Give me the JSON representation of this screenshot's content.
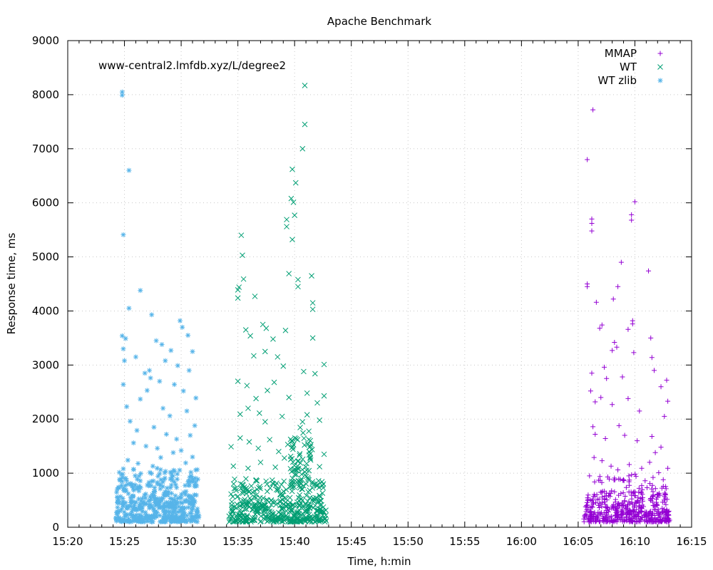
{
  "chart_data": {
    "type": "scatter",
    "title": "Apache Benchmark",
    "annotation": "www-central2.lmfdb.xyz/L/degree2",
    "xlabel": "Time, h:min",
    "ylabel": "Response time, ms",
    "xlim_minutes": [
      920,
      975
    ],
    "ylim": [
      0,
      9000
    ],
    "x_ticks": [
      {
        "v": 920,
        "label": "15:20"
      },
      {
        "v": 925,
        "label": "15:25"
      },
      {
        "v": 930,
        "label": "15:30"
      },
      {
        "v": 935,
        "label": "15:35"
      },
      {
        "v": 940,
        "label": "15:40"
      },
      {
        "v": 945,
        "label": "15:45"
      },
      {
        "v": 950,
        "label": "15:50"
      },
      {
        "v": 955,
        "label": "15:55"
      },
      {
        "v": 960,
        "label": "16:00"
      },
      {
        "v": 965,
        "label": "16:05"
      },
      {
        "v": 970,
        "label": "16:10"
      },
      {
        "v": 975,
        "label": "16:15"
      }
    ],
    "y_ticks": [
      0,
      1000,
      2000,
      3000,
      4000,
      5000,
      6000,
      7000,
      8000,
      9000
    ],
    "grid": true,
    "legend_position": "top-right",
    "series": [
      {
        "name": "MMAP",
        "color": "#9400d3",
        "marker": "plus",
        "points": [
          [
            965.8,
            6800
          ],
          [
            966.3,
            7720
          ],
          [
            966.2,
            5700
          ],
          [
            966.2,
            5620
          ],
          [
            966.2,
            5480
          ],
          [
            970.0,
            6020
          ],
          [
            969.7,
            5780
          ],
          [
            969.7,
            5680
          ],
          [
            968.8,
            4900
          ],
          [
            965.8,
            4500
          ],
          [
            965.8,
            4450
          ],
          [
            971.2,
            4740
          ],
          [
            968.5,
            4450
          ],
          [
            968.1,
            4220
          ],
          [
            966.6,
            4160
          ],
          [
            969.8,
            3820
          ],
          [
            969.8,
            3760
          ],
          [
            969.4,
            3660
          ],
          [
            967.1,
            3740
          ],
          [
            966.9,
            3680
          ],
          [
            968.4,
            3330
          ],
          [
            968.2,
            3420
          ],
          [
            968.0,
            3270
          ],
          [
            969.9,
            3230
          ],
          [
            967.5,
            2750
          ],
          [
            966.2,
            2850
          ],
          [
            966.1,
            2520
          ],
          [
            967.3,
            2960
          ],
          [
            968.9,
            2780
          ],
          [
            971.5,
            3140
          ],
          [
            971.4,
            3500
          ],
          [
            971.7,
            2900
          ],
          [
            972.3,
            2600
          ],
          [
            972.8,
            2720
          ],
          [
            972.9,
            2330
          ],
          [
            972.6,
            2050
          ],
          [
            970.4,
            2150
          ],
          [
            969.4,
            2380
          ],
          [
            968.0,
            2270
          ],
          [
            967.0,
            2400
          ],
          [
            966.5,
            2320
          ],
          [
            966.3,
            1860
          ],
          [
            966.5,
            1720
          ],
          [
            967.4,
            1640
          ],
          [
            968.6,
            1880
          ],
          [
            969.1,
            1700
          ],
          [
            970.2,
            1600
          ],
          [
            971.5,
            1680
          ],
          [
            971.8,
            1380
          ],
          [
            972.3,
            1480
          ],
          [
            972.1,
            1010
          ],
          [
            966.4,
            1290
          ],
          [
            967.1,
            1230
          ],
          [
            967.9,
            1130
          ],
          [
            968.5,
            1060
          ],
          [
            969.5,
            1160
          ],
          [
            970.6,
            1090
          ],
          [
            971.3,
            1200
          ],
          [
            972.9,
            1090
          ],
          [
            966.0,
            950
          ],
          [
            966.8,
            870
          ],
          [
            967.6,
            930
          ],
          [
            968.2,
            910
          ],
          [
            969.0,
            880
          ],
          [
            970.1,
            940
          ],
          [
            970.9,
            860
          ],
          [
            971.6,
            920
          ],
          [
            972.5,
            880
          ]
        ],
        "dense_bands": [
          {
            "t0": 965.5,
            "t1": 973.1,
            "y0": 100,
            "y1": 280,
            "n": 260
          },
          {
            "t0": 965.6,
            "t1": 973.0,
            "y0": 280,
            "y1": 650,
            "n": 200
          },
          {
            "t0": 965.8,
            "t1": 972.9,
            "y0": 650,
            "y1": 1000,
            "n": 40
          }
        ]
      },
      {
        "name": "WT",
        "color": "#009e73",
        "marker": "cross",
        "points": [
          [
            940.9,
            8170
          ],
          [
            940.9,
            7450
          ],
          [
            940.7,
            7000
          ],
          [
            939.8,
            6620
          ],
          [
            940.1,
            6370
          ],
          [
            939.7,
            6080
          ],
          [
            939.9,
            6010
          ],
          [
            940.0,
            5770
          ],
          [
            939.3,
            5690
          ],
          [
            939.3,
            5560
          ],
          [
            939.8,
            5320
          ],
          [
            935.3,
            5400
          ],
          [
            935.4,
            5030
          ],
          [
            939.5,
            4690
          ],
          [
            941.5,
            4650
          ],
          [
            940.3,
            4580
          ],
          [
            940.3,
            4450
          ],
          [
            935.5,
            4590
          ],
          [
            935.1,
            4440
          ],
          [
            935.0,
            4390
          ],
          [
            935.0,
            4240
          ],
          [
            936.5,
            4270
          ],
          [
            941.6,
            4150
          ],
          [
            941.6,
            4030
          ],
          [
            935.7,
            3650
          ],
          [
            937.2,
            3750
          ],
          [
            936.1,
            3540
          ],
          [
            937.5,
            3680
          ],
          [
            938.1,
            3480
          ],
          [
            939.2,
            3640
          ],
          [
            941.6,
            3500
          ],
          [
            942.6,
            3010
          ],
          [
            936.4,
            3170
          ],
          [
            937.4,
            3250
          ],
          [
            938.5,
            3150
          ],
          [
            939.0,
            2980
          ],
          [
            941.8,
            2840
          ],
          [
            940.8,
            2880
          ],
          [
            935.0,
            2700
          ],
          [
            935.8,
            2620
          ],
          [
            936.6,
            2380
          ],
          [
            937.6,
            2530
          ],
          [
            938.2,
            2680
          ],
          [
            939.5,
            2400
          ],
          [
            941.1,
            2480
          ],
          [
            942.0,
            2300
          ],
          [
            942.6,
            2430
          ],
          [
            935.2,
            2090
          ],
          [
            935.9,
            2200
          ],
          [
            936.9,
            2110
          ],
          [
            937.4,
            1950
          ],
          [
            938.9,
            2050
          ],
          [
            940.7,
            1950
          ],
          [
            941.1,
            2080
          ],
          [
            942.2,
            1980
          ],
          [
            934.4,
            1490
          ],
          [
            935.2,
            1650
          ],
          [
            936.0,
            1580
          ],
          [
            936.8,
            1460
          ],
          [
            937.8,
            1620
          ],
          [
            938.6,
            1400
          ],
          [
            939.4,
            1530
          ],
          [
            941.3,
            1480
          ],
          [
            942.6,
            1350
          ],
          [
            934.6,
            1130
          ],
          [
            935.9,
            1090
          ],
          [
            937.0,
            1200
          ],
          [
            938.3,
            1110
          ],
          [
            939.1,
            1280
          ],
          [
            942.2,
            1120
          ]
        ],
        "dense_bands": [
          {
            "t0": 934.2,
            "t1": 942.8,
            "y0": 100,
            "y1": 400,
            "n": 260
          },
          {
            "t0": 934.3,
            "t1": 942.7,
            "y0": 400,
            "y1": 900,
            "n": 170
          },
          {
            "t0": 939.6,
            "t1": 941.6,
            "y0": 700,
            "y1": 1850,
            "n": 75
          }
        ]
      },
      {
        "name": "WT zlib",
        "color": "#56b4e9",
        "marker": "star",
        "points": [
          [
            924.8,
            8050
          ],
          [
            924.8,
            7990
          ],
          [
            925.4,
            6600
          ],
          [
            924.9,
            5410
          ],
          [
            926.4,
            4380
          ],
          [
            925.4,
            4050
          ],
          [
            927.4,
            3930
          ],
          [
            929.9,
            3820
          ],
          [
            930.1,
            3700
          ],
          [
            924.8,
            3540
          ],
          [
            925.1,
            3490
          ],
          [
            924.9,
            3300
          ],
          [
            927.8,
            3450
          ],
          [
            928.3,
            3380
          ],
          [
            929.1,
            3270
          ],
          [
            930.6,
            3550
          ],
          [
            931.0,
            3250
          ],
          [
            925.0,
            3080
          ],
          [
            926.0,
            3150
          ],
          [
            927.2,
            2900
          ],
          [
            928.6,
            3080
          ],
          [
            929.7,
            2990
          ],
          [
            930.7,
            2900
          ],
          [
            924.9,
            2640
          ],
          [
            926.8,
            2850
          ],
          [
            927.3,
            2760
          ],
          [
            928.1,
            2700
          ],
          [
            929.4,
            2640
          ],
          [
            930.2,
            2520
          ],
          [
            931.3,
            2390
          ],
          [
            925.2,
            2230
          ],
          [
            926.4,
            2370
          ],
          [
            927.0,
            2530
          ],
          [
            928.4,
            2200
          ],
          [
            929.0,
            2060
          ],
          [
            930.5,
            2150
          ],
          [
            931.2,
            1880
          ],
          [
            925.5,
            1960
          ],
          [
            926.1,
            1790
          ],
          [
            927.6,
            1850
          ],
          [
            928.7,
            1720
          ],
          [
            929.6,
            1630
          ],
          [
            930.8,
            1700
          ],
          [
            925.8,
            1560
          ],
          [
            926.9,
            1500
          ],
          [
            927.9,
            1460
          ],
          [
            929.3,
            1380
          ],
          [
            930.0,
            1420
          ],
          [
            931.0,
            1300
          ],
          [
            925.3,
            1240
          ],
          [
            926.2,
            1180
          ],
          [
            928.2,
            1290
          ],
          [
            930.4,
            1190
          ],
          [
            924.9,
            1080
          ],
          [
            927.5,
            1130
          ]
        ],
        "dense_bands": [
          {
            "t0": 924.2,
            "t1": 931.6,
            "y0": 100,
            "y1": 450,
            "n": 280
          },
          {
            "t0": 924.3,
            "t1": 931.5,
            "y0": 450,
            "y1": 1100,
            "n": 210
          }
        ]
      }
    ]
  }
}
